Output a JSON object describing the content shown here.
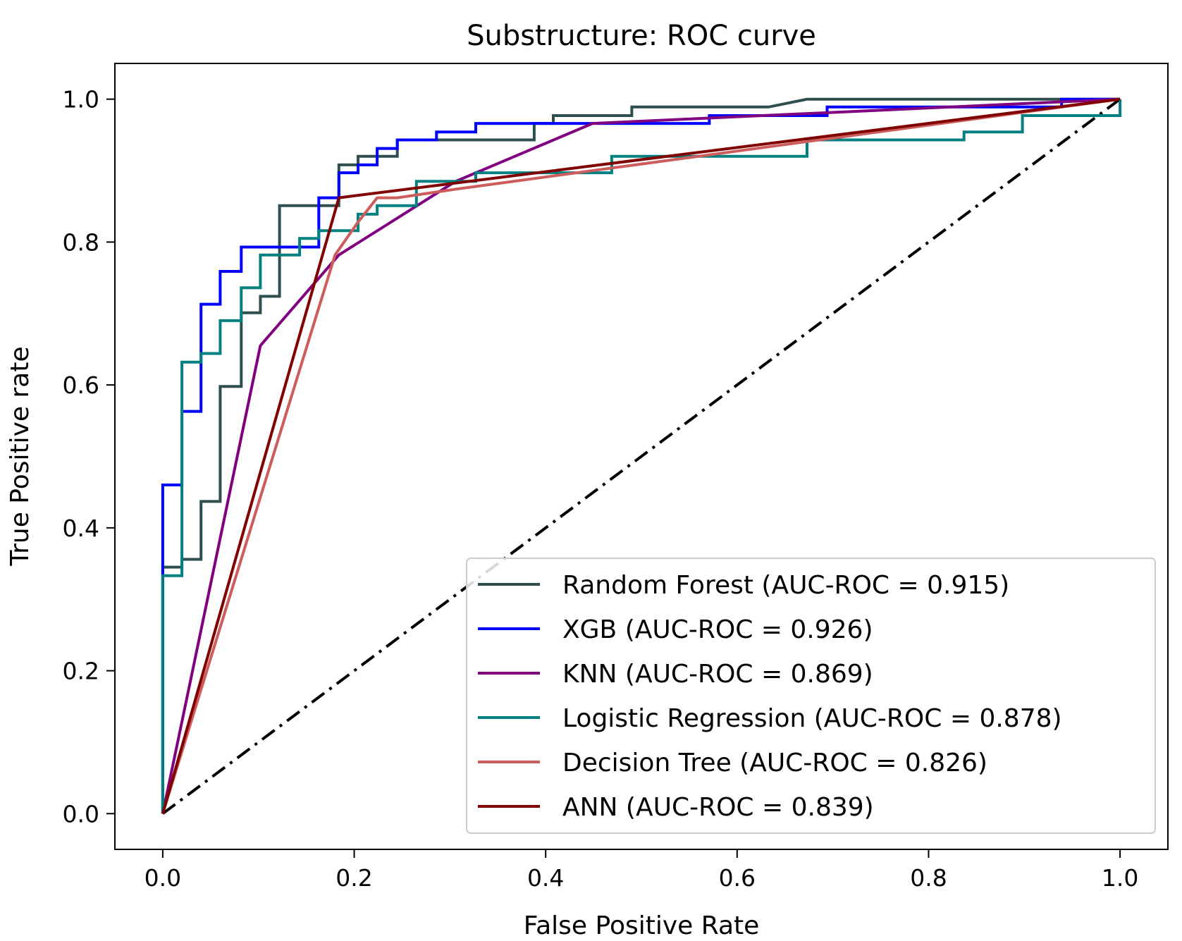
{
  "chart_data": {
    "type": "line",
    "title": "Substructure: ROC curve",
    "xlabel": "False Positive Rate",
    "ylabel": "True Positive rate",
    "xlim": [
      -0.05,
      1.05
    ],
    "ylim": [
      -0.05,
      1.05
    ],
    "xticks": [
      0.0,
      0.2,
      0.4,
      0.6,
      0.8,
      1.0
    ],
    "yticks": [
      0.0,
      0.2,
      0.4,
      0.6,
      0.8,
      1.0
    ],
    "xtick_labels": [
      "0.0",
      "0.2",
      "0.4",
      "0.6",
      "0.8",
      "1.0"
    ],
    "ytick_labels": [
      "0.0",
      "0.2",
      "0.4",
      "0.6",
      "0.8",
      "1.0"
    ],
    "grid": false,
    "legend_position": "lower-right",
    "diagonal": {
      "x": [
        0,
        1
      ],
      "y": [
        0,
        1
      ],
      "color": "#000000",
      "style": "dash-dot"
    },
    "series": [
      {
        "name": "Random Forest (AUC-ROC = 0.915)",
        "color": "#2f4f4f",
        "x": [
          0,
          0,
          0.02,
          0.02,
          0.04,
          0.04,
          0.06,
          0.06,
          0.082,
          0.082,
          0.102,
          0.102,
          0.122,
          0.122,
          0.184,
          0.184,
          0.204,
          0.204,
          0.245,
          0.245,
          0.388,
          0.388,
          0.408,
          0.408,
          0.49,
          0.49,
          0.633,
          0.673,
          1.0
        ],
        "y": [
          0,
          0.345,
          0.345,
          0.356,
          0.356,
          0.437,
          0.437,
          0.598,
          0.598,
          0.701,
          0.701,
          0.724,
          0.724,
          0.851,
          0.851,
          0.908,
          0.908,
          0.92,
          0.92,
          0.943,
          0.943,
          0.966,
          0.966,
          0.977,
          0.977,
          0.989,
          0.989,
          1.0,
          1.0
        ]
      },
      {
        "name": "XGB (AUC-ROC = 0.926)",
        "color": "#0000ff",
        "x": [
          0,
          0,
          0.02,
          0.02,
          0.04,
          0.04,
          0.06,
          0.06,
          0.082,
          0.082,
          0.163,
          0.163,
          0.184,
          0.184,
          0.204,
          0.204,
          0.224,
          0.224,
          0.245,
          0.245,
          0.286,
          0.286,
          0.327,
          0.327,
          0.571,
          0.571,
          0.694,
          0.694,
          0.939,
          0.939,
          1.0
        ],
        "y": [
          0,
          0.46,
          0.46,
          0.563,
          0.563,
          0.713,
          0.713,
          0.759,
          0.759,
          0.793,
          0.793,
          0.862,
          0.862,
          0.897,
          0.897,
          0.908,
          0.908,
          0.931,
          0.931,
          0.943,
          0.943,
          0.954,
          0.954,
          0.966,
          0.966,
          0.977,
          0.977,
          0.989,
          0.989,
          1.0,
          1.0
        ]
      },
      {
        "name": "KNN (AUC-ROC = 0.869)",
        "color": "#800080",
        "x": [
          0,
          0.102,
          0.184,
          0.306,
          0.449,
          1.0
        ],
        "y": [
          0,
          0.655,
          0.782,
          0.885,
          0.966,
          1.0
        ]
      },
      {
        "name": "Logistic Regression (AUC-ROC = 0.878)",
        "color": "#008080",
        "x": [
          0,
          0,
          0.02,
          0.02,
          0.04,
          0.04,
          0.06,
          0.06,
          0.082,
          0.082,
          0.102,
          0.102,
          0.143,
          0.143,
          0.163,
          0.163,
          0.204,
          0.204,
          0.224,
          0.224,
          0.265,
          0.265,
          0.327,
          0.327,
          0.469,
          0.469,
          0.673,
          0.673,
          0.837,
          0.837,
          0.898,
          0.898,
          1.0,
          1.0
        ],
        "y": [
          0,
          0.333,
          0.333,
          0.632,
          0.632,
          0.644,
          0.644,
          0.69,
          0.69,
          0.736,
          0.736,
          0.782,
          0.782,
          0.805,
          0.805,
          0.816,
          0.816,
          0.839,
          0.839,
          0.851,
          0.851,
          0.885,
          0.885,
          0.897,
          0.897,
          0.92,
          0.92,
          0.943,
          0.943,
          0.954,
          0.954,
          0.977,
          0.977,
          1.0
        ]
      },
      {
        "name": "Decision Tree (AUC-ROC = 0.826)",
        "color": "#cd5c5c",
        "x": [
          0,
          0.18,
          0.204,
          0.224,
          0.245,
          0.306,
          1.0
        ],
        "y": [
          0,
          0.782,
          0.828,
          0.862,
          0.862,
          0.874,
          1.0
        ]
      },
      {
        "name": "ANN (AUC-ROC = 0.839)",
        "color": "#800000",
        "x": [
          0,
          0.184,
          1.0
        ],
        "y": [
          0,
          0.862,
          1.0
        ]
      }
    ]
  }
}
